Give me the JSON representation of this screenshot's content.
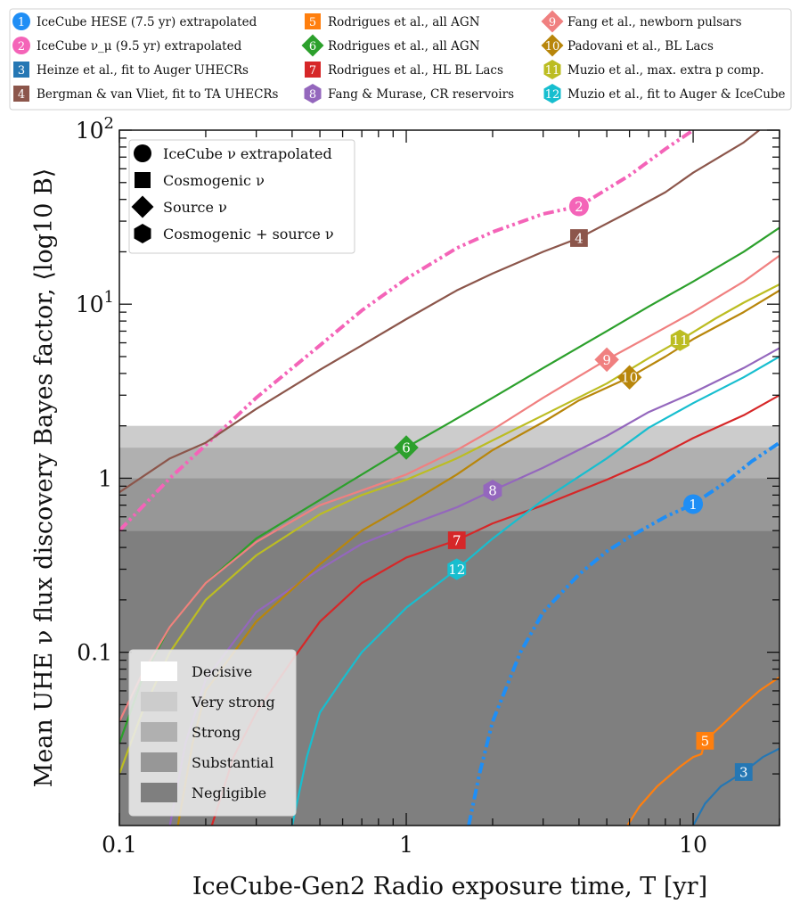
{
  "chart_data": {
    "type": "line",
    "xscale": "log",
    "yscale": "log",
    "xlabel": "IceCube-Gen2 Radio exposure time, T [yr]",
    "ylabel": "Mean UHE ν flux discovery Bayes factor, ⟨log10 B⟩",
    "xlim": [
      0.1,
      20
    ],
    "ylim": [
      0.0101,
      100
    ],
    "x_ticks": [
      {
        "value": 0.1,
        "label": "0.1"
      },
      {
        "value": 1,
        "label": "1"
      },
      {
        "value": 10,
        "label": "10"
      }
    ],
    "y_ticks": [
      {
        "value": 0.1,
        "label": "0.1"
      },
      {
        "value": 1,
        "label": "1"
      },
      {
        "value": 10,
        "label": "10",
        "exp": "1"
      },
      {
        "value": 100,
        "label": "10",
        "exp": "2"
      }
    ],
    "significance_bands": [
      {
        "name": "Decisive",
        "from": 2,
        "to": 100,
        "color": "#ffffff"
      },
      {
        "name": "Very strong",
        "from": 1.5,
        "to": 2,
        "color": "#cccccc"
      },
      {
        "name": "Strong",
        "from": 1,
        "to": 1.5,
        "color": "#b0b0b0"
      },
      {
        "name": "Substantial",
        "from": 0.5,
        "to": 1,
        "color": "#979797"
      },
      {
        "name": "Negligible",
        "from": 0.0101,
        "to": 0.5,
        "color": "#7f7f7f"
      }
    ],
    "marker_legend": [
      {
        "shape": "circle",
        "label": "IceCube ν extrapolated"
      },
      {
        "shape": "square",
        "label": "Cosmogenic ν"
      },
      {
        "shape": "diamond",
        "label": "Source ν"
      },
      {
        "shape": "hexagon",
        "label": "Cosmogenic + source ν"
      }
    ],
    "series": [
      {
        "id": "1",
        "name": "IceCube HESE (7.5 yr) extrapolated",
        "color": "#1f8ef5",
        "shape": "circle",
        "dash": "dashdotdot",
        "marker": [
          10,
          0.71
        ],
        "points": [
          [
            1.65,
            0.0101
          ],
          [
            1.8,
            0.02
          ],
          [
            2,
            0.04
          ],
          [
            2.5,
            0.1
          ],
          [
            3,
            0.17
          ],
          [
            4,
            0.28
          ],
          [
            5,
            0.38
          ],
          [
            6,
            0.46
          ],
          [
            8,
            0.6
          ],
          [
            10,
            0.71
          ],
          [
            13,
            0.95
          ],
          [
            16,
            1.25
          ],
          [
            20,
            1.6
          ]
        ]
      },
      {
        "id": "2",
        "name": "IceCube ν_μ (9.5 yr) extrapolated",
        "color": "#f464b8",
        "shape": "circle",
        "dash": "dashdotdot",
        "marker": [
          4,
          36.5
        ],
        "points": [
          [
            0.1,
            0.5
          ],
          [
            0.15,
            1.0
          ],
          [
            0.2,
            1.55
          ],
          [
            0.3,
            2.9
          ],
          [
            0.5,
            5.8
          ],
          [
            0.7,
            9.2
          ],
          [
            1,
            14
          ],
          [
            1.5,
            21
          ],
          [
            2,
            26
          ],
          [
            3,
            33
          ],
          [
            4,
            36.5
          ],
          [
            6,
            55
          ],
          [
            8,
            78
          ],
          [
            10,
            100
          ]
        ]
      },
      {
        "id": "3",
        "name": "Heinze et al., fit to Auger UHECRs",
        "color": "#2577b4",
        "shape": "square",
        "dash": "solid",
        "marker": [
          15,
          0.0205
        ],
        "points": [
          [
            10,
            0.0101
          ],
          [
            11,
            0.0135
          ],
          [
            12.5,
            0.017
          ],
          [
            15,
            0.0205
          ],
          [
            17.5,
            0.025
          ],
          [
            20,
            0.028
          ]
        ]
      },
      {
        "id": "4",
        "name": "Bergman & van Vliet, fit to TA UHECRs",
        "color": "#8c564b",
        "shape": "square",
        "dash": "solid",
        "marker": [
          4,
          24
        ],
        "points": [
          [
            0.1,
            0.83
          ],
          [
            0.15,
            1.3
          ],
          [
            0.2,
            1.6
          ],
          [
            0.3,
            2.5
          ],
          [
            0.5,
            4.2
          ],
          [
            0.7,
            5.8
          ],
          [
            1,
            8.2
          ],
          [
            1.5,
            12
          ],
          [
            2,
            15
          ],
          [
            3,
            20
          ],
          [
            4,
            24
          ],
          [
            6,
            34
          ],
          [
            8,
            44
          ],
          [
            10,
            57
          ],
          [
            15,
            85
          ],
          [
            17,
            100
          ]
        ]
      },
      {
        "id": "5",
        "name": "Rodrigues et al., all AGN",
        "color": "#ff7f0e",
        "shape": "square",
        "dash": "solid",
        "marker": [
          11,
          0.031
        ],
        "points": [
          [
            5.9,
            0.0101
          ],
          [
            6.5,
            0.013
          ],
          [
            7.5,
            0.017
          ],
          [
            9,
            0.022
          ],
          [
            10,
            0.025
          ],
          [
            10.7,
            0.026
          ],
          [
            11,
            0.031
          ],
          [
            13,
            0.04
          ],
          [
            15,
            0.05
          ],
          [
            17,
            0.06
          ],
          [
            20,
            0.072
          ]
        ]
      },
      {
        "id": "6",
        "name": "Rodrigues et al., all AGN",
        "color": "#2ca02c",
        "shape": "diamond",
        "dash": "solid",
        "marker": [
          1,
          1.5
        ],
        "points": [
          [
            0.1,
            0.03
          ],
          [
            0.12,
            0.07
          ],
          [
            0.15,
            0.14
          ],
          [
            0.2,
            0.25
          ],
          [
            0.3,
            0.45
          ],
          [
            0.5,
            0.75
          ],
          [
            0.7,
            1.05
          ],
          [
            1,
            1.5
          ],
          [
            1.5,
            2.2
          ],
          [
            2,
            2.9
          ],
          [
            3,
            4.3
          ],
          [
            5,
            7
          ],
          [
            7,
            9.7
          ],
          [
            10,
            13.5
          ],
          [
            15,
            20
          ],
          [
            20,
            27.5
          ]
        ]
      },
      {
        "id": "7",
        "name": "Rodrigues et al., HL BL Lacs",
        "color": "#d62728",
        "shape": "square",
        "dash": "solid",
        "marker": [
          1.5,
          0.44
        ],
        "points": [
          [
            0.21,
            0.0101
          ],
          [
            0.25,
            0.025
          ],
          [
            0.3,
            0.045
          ],
          [
            0.4,
            0.09
          ],
          [
            0.5,
            0.15
          ],
          [
            0.7,
            0.25
          ],
          [
            1,
            0.35
          ],
          [
            1.5,
            0.44
          ],
          [
            2,
            0.55
          ],
          [
            3,
            0.7
          ],
          [
            5,
            0.98
          ],
          [
            7,
            1.25
          ],
          [
            10,
            1.7
          ],
          [
            15,
            2.3
          ],
          [
            20,
            3
          ]
        ]
      },
      {
        "id": "8",
        "name": "Fang & Murase, CR reservoirs",
        "color": "#9467bd",
        "shape": "hexagon",
        "dash": "solid",
        "marker": [
          2,
          0.85
        ],
        "points": [
          [
            0.15,
            0.0101
          ],
          [
            0.17,
            0.03
          ],
          [
            0.2,
            0.07
          ],
          [
            0.3,
            0.17
          ],
          [
            0.5,
            0.3
          ],
          [
            0.7,
            0.42
          ],
          [
            1,
            0.53
          ],
          [
            1.5,
            0.68
          ],
          [
            2,
            0.85
          ],
          [
            3,
            1.15
          ],
          [
            5,
            1.75
          ],
          [
            7,
            2.4
          ],
          [
            10,
            3.1
          ],
          [
            15,
            4.3
          ],
          [
            20,
            5.6
          ]
        ]
      },
      {
        "id": "9",
        "name": "Fang et al., newborn pulsars",
        "color": "#f08080",
        "shape": "diamond",
        "dash": "solid",
        "marker": [
          5,
          4.8
        ],
        "points": [
          [
            0.1,
            0.04
          ],
          [
            0.12,
            0.075
          ],
          [
            0.15,
            0.14
          ],
          [
            0.2,
            0.25
          ],
          [
            0.3,
            0.43
          ],
          [
            0.5,
            0.7
          ],
          [
            0.7,
            0.85
          ],
          [
            1,
            1.05
          ],
          [
            1.5,
            1.45
          ],
          [
            2,
            1.9
          ],
          [
            3,
            2.9
          ],
          [
            5,
            4.8
          ],
          [
            7,
            6.5
          ],
          [
            10,
            9
          ],
          [
            15,
            13.5
          ],
          [
            20,
            19
          ]
        ]
      },
      {
        "id": "10",
        "name": "Padovani et al., BL Lacs",
        "color": "#b8860b",
        "shape": "diamond",
        "dash": "solid",
        "marker": [
          6,
          3.8
        ],
        "points": [
          [
            0.16,
            0.0101
          ],
          [
            0.18,
            0.03
          ],
          [
            0.2,
            0.06
          ],
          [
            0.3,
            0.15
          ],
          [
            0.5,
            0.32
          ],
          [
            0.7,
            0.5
          ],
          [
            1,
            0.7
          ],
          [
            1.5,
            1.05
          ],
          [
            2,
            1.45
          ],
          [
            3,
            2.1
          ],
          [
            4,
            2.8
          ],
          [
            6,
            3.8
          ],
          [
            8,
            5
          ],
          [
            10,
            6.3
          ],
          [
            15,
            9
          ],
          [
            20,
            12
          ]
        ]
      },
      {
        "id": "11",
        "name": "Muzio et al., max. extra p comp.",
        "color": "#bcbd22",
        "shape": "hexagon",
        "dash": "solid",
        "marker": [
          9,
          6.2
        ],
        "points": [
          [
            0.1,
            0.02
          ],
          [
            0.12,
            0.045
          ],
          [
            0.15,
            0.1
          ],
          [
            0.2,
            0.2
          ],
          [
            0.3,
            0.36
          ],
          [
            0.5,
            0.62
          ],
          [
            0.7,
            0.8
          ],
          [
            1,
            0.98
          ],
          [
            1.5,
            1.3
          ],
          [
            2,
            1.65
          ],
          [
            3,
            2.3
          ],
          [
            5,
            3.5
          ],
          [
            7,
            4.9
          ],
          [
            9,
            6.2
          ],
          [
            12,
            8.3
          ],
          [
            15,
            10.2
          ],
          [
            20,
            13
          ]
        ]
      },
      {
        "id": "12",
        "name": "Muzio et al., fit to Auger & IceCube",
        "color": "#17becf",
        "shape": "hexagon",
        "dash": "solid",
        "marker": [
          1.5,
          0.3
        ],
        "points": [
          [
            0.4,
            0.0101
          ],
          [
            0.45,
            0.025
          ],
          [
            0.5,
            0.045
          ],
          [
            0.6,
            0.07
          ],
          [
            0.7,
            0.1
          ],
          [
            1,
            0.18
          ],
          [
            1.5,
            0.3
          ],
          [
            2,
            0.45
          ],
          [
            3,
            0.75
          ],
          [
            5,
            1.3
          ],
          [
            7,
            1.95
          ],
          [
            10,
            2.7
          ],
          [
            15,
            3.8
          ],
          [
            20,
            5
          ]
        ]
      }
    ]
  }
}
